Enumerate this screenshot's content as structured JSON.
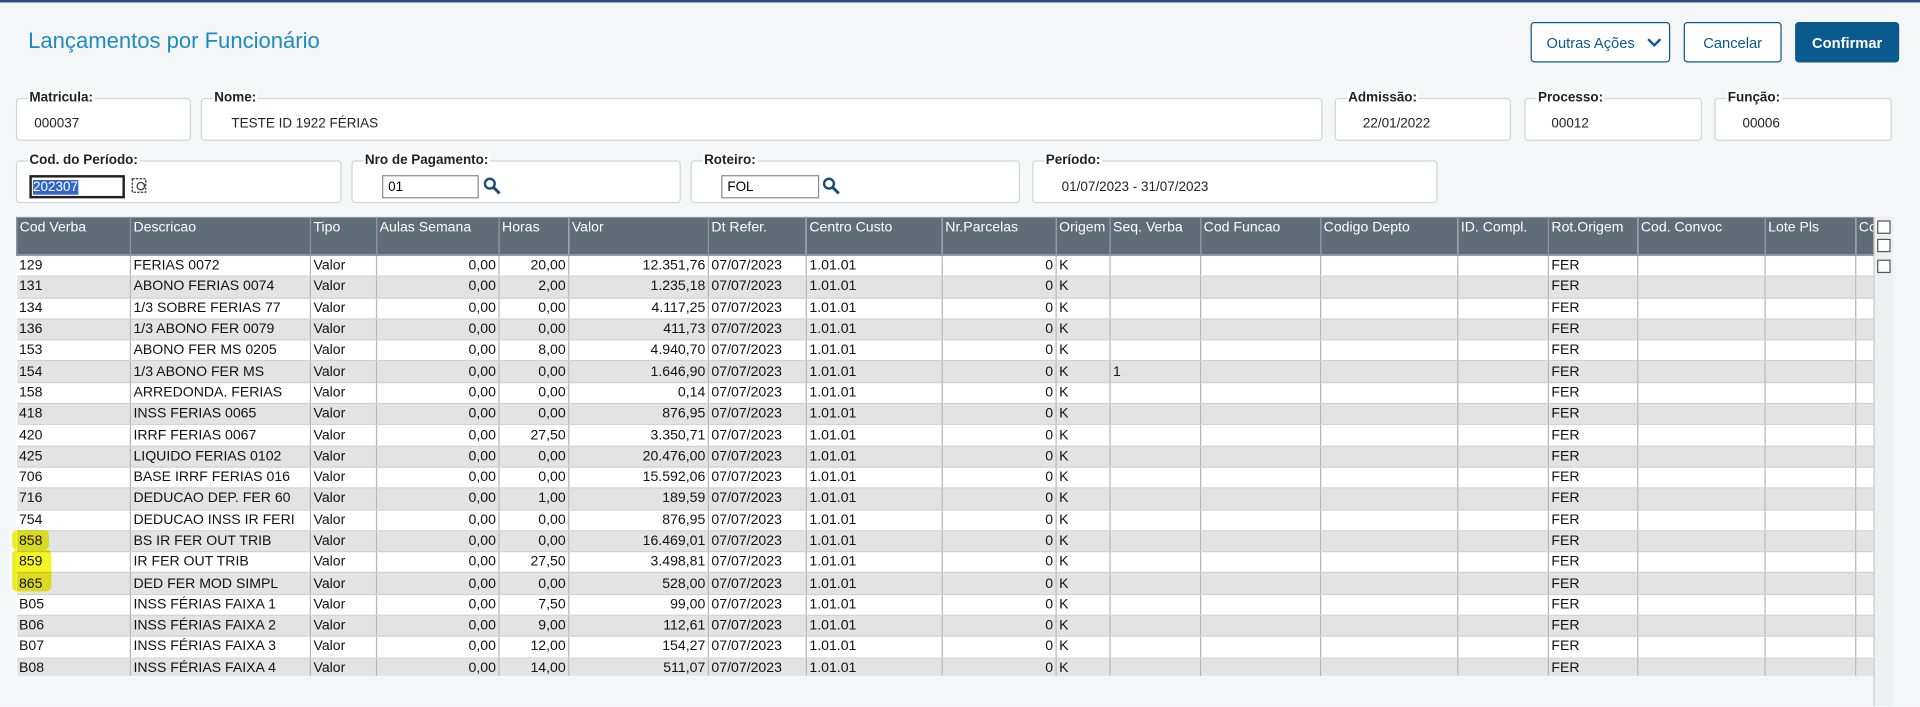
{
  "header": {
    "title": "Lançamentos por Funcionário",
    "buttons": [
      "Outras Ações",
      "Cancelar",
      "Confirmar"
    ]
  },
  "fields": [
    {
      "label": "Matricula:",
      "value": "000037"
    },
    {
      "label": "Nome:",
      "value": "TESTE ID 1922 FÉRIAS"
    },
    {
      "label": "Admissão:",
      "value": "22/01/2022"
    },
    {
      "label": "Processo:",
      "value": "00012"
    },
    {
      "label": "Função:",
      "value": "00006"
    },
    {
      "label": "Cod. do Período:",
      "value": "202307"
    },
    {
      "label": "Nro de Pagamento:",
      "value": "01"
    },
    {
      "label": "Roteiro:",
      "value": "FOL"
    },
    {
      "label": "Período:",
      "value": "01/07/2023 - 31/07/2023"
    }
  ],
  "table": {
    "columns": [
      "Cod Verba",
      "Descricao",
      "Tipo",
      "Aulas Semana",
      "Horas",
      "Valor",
      "Dt Refer.",
      "Centro Custo",
      "Nr.Parcelas",
      "Origem",
      "Seq. Verba",
      "Cod Funcao",
      "Codigo Depto",
      "ID. Compl.",
      "Rot.Origem",
      "Cod. Convoc",
      "Lote Pls",
      "Co"
    ],
    "rows": [
      [
        "129",
        "FERIAS 0072",
        "Valor",
        "0,00",
        "20,00",
        "12.351,76",
        "07/07/2023",
        "1.01.01",
        "0",
        "K",
        null,
        null,
        null,
        null,
        "FER",
        null,
        null,
        null
      ],
      [
        "131",
        "ABONO FERIAS 0074",
        "Valor",
        "0,00",
        "2,00",
        "1.235,18",
        "07/07/2023",
        "1.01.01",
        "0",
        "K",
        null,
        null,
        null,
        null,
        "FER",
        null,
        null,
        null
      ],
      [
        "134",
        "1/3 SOBRE FERIAS 77",
        "Valor",
        "0,00",
        "0,00",
        "4.117,25",
        "07/07/2023",
        "1.01.01",
        "0",
        "K",
        null,
        null,
        null,
        null,
        "FER",
        null,
        null,
        null
      ],
      [
        "136",
        "1/3 ABONO FER 0079",
        "Valor",
        "0,00",
        "0,00",
        "411,73",
        "07/07/2023",
        "1.01.01",
        "0",
        "K",
        null,
        null,
        null,
        null,
        "FER",
        null,
        null,
        null
      ],
      [
        "153",
        "ABONO FER MS 0205",
        "Valor",
        "0,00",
        "8,00",
        "4.940,70",
        "07/07/2023",
        "1.01.01",
        "0",
        "K",
        null,
        null,
        null,
        null,
        "FER",
        null,
        null,
        null
      ],
      [
        "154",
        "1/3 ABONO FER MS",
        "Valor",
        "0,00",
        "0,00",
        "1.646,90",
        "07/07/2023",
        "1.01.01",
        "0",
        "K",
        "1",
        null,
        null,
        null,
        "FER",
        null,
        null,
        null
      ],
      [
        "158",
        "ARREDONDA. FERIAS",
        "Valor",
        "0,00",
        "0,00",
        "0,14",
        "07/07/2023",
        "1.01.01",
        "0",
        "K",
        null,
        null,
        null,
        null,
        "FER",
        null,
        null,
        null
      ],
      [
        "418",
        "INSS FERIAS 0065",
        "Valor",
        "0,00",
        "0,00",
        "876,95",
        "07/07/2023",
        "1.01.01",
        "0",
        "K",
        null,
        null,
        null,
        null,
        "FER",
        null,
        null,
        null
      ],
      [
        "420",
        "IRRF FERIAS 0067",
        "Valor",
        "0,00",
        "27,50",
        "3.350,71",
        "07/07/2023",
        "1.01.01",
        "0",
        "K",
        null,
        null,
        null,
        null,
        "FER",
        null,
        null,
        null
      ],
      [
        "425",
        "LIQUIDO FERIAS 0102",
        "Valor",
        "0,00",
        "0,00",
        "20.476,00",
        "07/07/2023",
        "1.01.01",
        "0",
        "K",
        null,
        null,
        null,
        null,
        "FER",
        null,
        null,
        null
      ],
      [
        "706",
        "BASE IRRF FERIAS 016",
        "Valor",
        "0,00",
        "0,00",
        "15.592,06",
        "07/07/2023",
        "1.01.01",
        "0",
        "K",
        null,
        null,
        null,
        null,
        "FER",
        null,
        null,
        null
      ],
      [
        "716",
        "DEDUCAO DEP. FER 60",
        "Valor",
        "0,00",
        "1,00",
        "189,59",
        "07/07/2023",
        "1.01.01",
        "0",
        "K",
        null,
        null,
        null,
        null,
        "FER",
        null,
        null,
        null
      ],
      [
        "754",
        "DEDUCAO INSS IR FERI",
        "Valor",
        "0,00",
        "0,00",
        "876,95",
        "07/07/2023",
        "1.01.01",
        "0",
        "K",
        null,
        null,
        null,
        null,
        "FER",
        null,
        null,
        null
      ],
      [
        "858",
        "BS IR FER OUT TRIB",
        "Valor",
        "0,00",
        "0,00",
        "16.469,01",
        "07/07/2023",
        "1.01.01",
        "0",
        "K",
        null,
        null,
        null,
        null,
        "FER",
        null,
        null,
        null
      ],
      [
        "859",
        "IR FER OUT TRIB",
        "Valor",
        "0,00",
        "27,50",
        "3.498,81",
        "07/07/2023",
        "1.01.01",
        "0",
        "K",
        null,
        null,
        null,
        null,
        "FER",
        null,
        null,
        null
      ],
      [
        "865",
        "DED FER MOD SIMPL",
        "Valor",
        "0,00",
        "0,00",
        "528,00",
        "07/07/2023",
        "1.01.01",
        "0",
        "K",
        null,
        null,
        null,
        null,
        "FER",
        null,
        null,
        null
      ],
      [
        "B05",
        "INSS FÉRIAS FAIXA 1",
        "Valor",
        "0,00",
        "7,50",
        "99,00",
        "07/07/2023",
        "1.01.01",
        "0",
        "K",
        null,
        null,
        null,
        null,
        "FER",
        null,
        null,
        null
      ],
      [
        "B06",
        "INSS FÉRIAS FAIXA 2",
        "Valor",
        "0,00",
        "9,00",
        "112,61",
        "07/07/2023",
        "1.01.01",
        "0",
        "K",
        null,
        null,
        null,
        null,
        "FER",
        null,
        null,
        null
      ],
      [
        "B07",
        "INSS FÉRIAS FAIXA 3",
        "Valor",
        "0,00",
        "12,00",
        "154,27",
        "07/07/2023",
        "1.01.01",
        "0",
        "K",
        null,
        null,
        null,
        null,
        "FER",
        null,
        null,
        null
      ],
      [
        "B08",
        "INSS FÉRIAS FAIXA 4",
        "Valor",
        "0,00",
        "14,00",
        "511,07",
        "07/07/2023",
        "1.01.01",
        "0",
        "K",
        null,
        null,
        null,
        null,
        "FER",
        null,
        null,
        null
      ]
    ]
  }
}
